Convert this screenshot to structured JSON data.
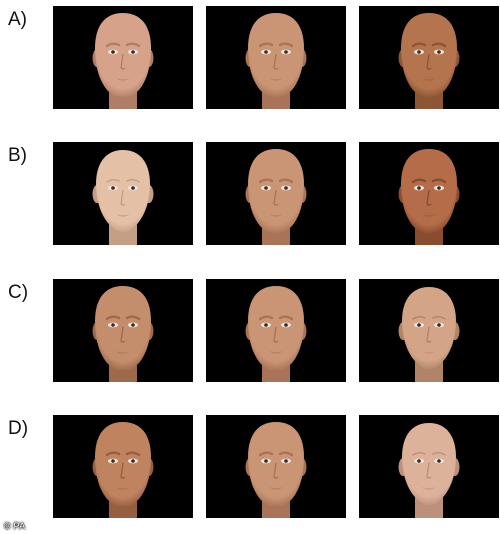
{
  "rows": [
    {
      "label": "A)",
      "faces": [
        {
          "skin": "#d6a28a",
          "shade": "#b07e66",
          "lip": "#c57e7a",
          "feminine": false
        },
        {
          "skin": "#c99574",
          "shade": "#a87356",
          "lip": "#b67868",
          "feminine": false
        },
        {
          "skin": "#b4754e",
          "shade": "#8c5534",
          "lip": "#9f5e4c",
          "feminine": false
        }
      ]
    },
    {
      "label": "B)",
      "faces": [
        {
          "skin": "#e4c0a6",
          "shade": "#c69e84",
          "lip": "#d29088",
          "feminine": true
        },
        {
          "skin": "#c99574",
          "shade": "#a87356",
          "lip": "#b67868",
          "feminine": false
        },
        {
          "skin": "#b46d48",
          "shade": "#8a4c2e",
          "lip": "#9a5a48",
          "feminine": false
        }
      ]
    },
    {
      "label": "C)",
      "faces": [
        {
          "skin": "#c48e6c",
          "shade": "#9e6a4c",
          "lip": "#b07460",
          "feminine": false
        },
        {
          "skin": "#c99574",
          "shade": "#a87356",
          "lip": "#b67868",
          "feminine": false
        },
        {
          "skin": "#d3a486",
          "shade": "#b08466",
          "lip": "#c88a80",
          "feminine": true
        }
      ]
    },
    {
      "label": "D)",
      "faces": [
        {
          "skin": "#bf8360",
          "shade": "#975e40",
          "lip": "#a86e5a",
          "feminine": false
        },
        {
          "skin": "#c99574",
          "shade": "#a87356",
          "lip": "#b67868",
          "feminine": false
        },
        {
          "skin": "#dcb29a",
          "shade": "#bc907a",
          "lip": "#cf8e88",
          "feminine": true
        }
      ]
    }
  ],
  "credit": "© PA"
}
